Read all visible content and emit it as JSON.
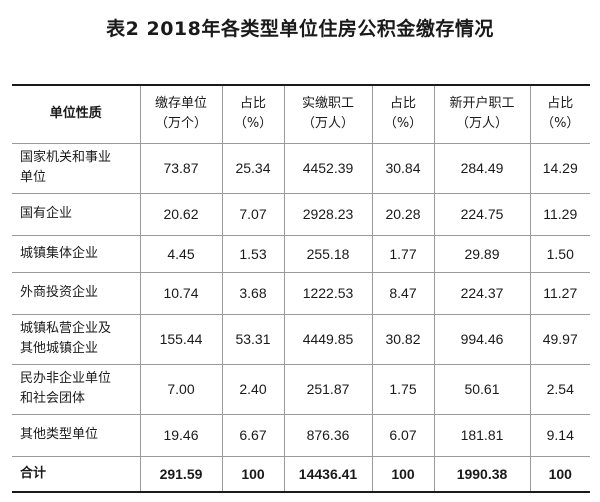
{
  "title": "表2  2018年各类型单位住房公积金缴存情况",
  "header": {
    "col0": "单位性质",
    "col1_line1": "缴存单位",
    "col1_line2": "（万个）",
    "col2_line1": "占比",
    "col2_line2": "（%）",
    "col3_line1": "实缴职工",
    "col3_line2": "（万人）",
    "col4_line1": "占比",
    "col4_line2": "（%）",
    "col5_line1": "新开户职工",
    "col5_line2": "（万人）",
    "col6_line1": "占比",
    "col6_line2": "（%）"
  },
  "rows": [
    {
      "name_line1": "国家机关和事业",
      "name_line2": "单位",
      "units": "73.87",
      "units_pct": "25.34",
      "workers": "4452.39",
      "workers_pct": "30.84",
      "new_workers": "284.49",
      "new_pct": "14.29"
    },
    {
      "name_line1": "国有企业",
      "name_line2": "",
      "units": "20.62",
      "units_pct": "7.07",
      "workers": "2928.23",
      "workers_pct": "20.28",
      "new_workers": "224.75",
      "new_pct": "11.29"
    },
    {
      "name_line1": "城镇集体企业",
      "name_line2": "",
      "units": "4.45",
      "units_pct": "1.53",
      "workers": "255.18",
      "workers_pct": "1.77",
      "new_workers": "29.89",
      "new_pct": "1.50"
    },
    {
      "name_line1": "外商投资企业",
      "name_line2": "",
      "units": "10.74",
      "units_pct": "3.68",
      "workers": "1222.53",
      "workers_pct": "8.47",
      "new_workers": "224.37",
      "new_pct": "11.27"
    },
    {
      "name_line1": "城镇私营企业及",
      "name_line2": "其他城镇企业",
      "units": "155.44",
      "units_pct": "53.31",
      "workers": "4449.85",
      "workers_pct": "30.82",
      "new_workers": "994.46",
      "new_pct": "49.97"
    },
    {
      "name_line1": "民办非企业单位",
      "name_line2": "和社会团体",
      "units": "7.00",
      "units_pct": "2.40",
      "workers": "251.87",
      "workers_pct": "1.75",
      "new_workers": "50.61",
      "new_pct": "2.54"
    },
    {
      "name_line1": "其他类型单位",
      "name_line2": "",
      "units": "19.46",
      "units_pct": "6.67",
      "workers": "876.36",
      "workers_pct": "6.07",
      "new_workers": "181.81",
      "new_pct": "9.14"
    }
  ],
  "total": {
    "name": "合计",
    "units": "291.59",
    "units_pct": "100",
    "workers": "14436.41",
    "workers_pct": "100",
    "new_workers": "1990.38",
    "new_pct": "100"
  }
}
